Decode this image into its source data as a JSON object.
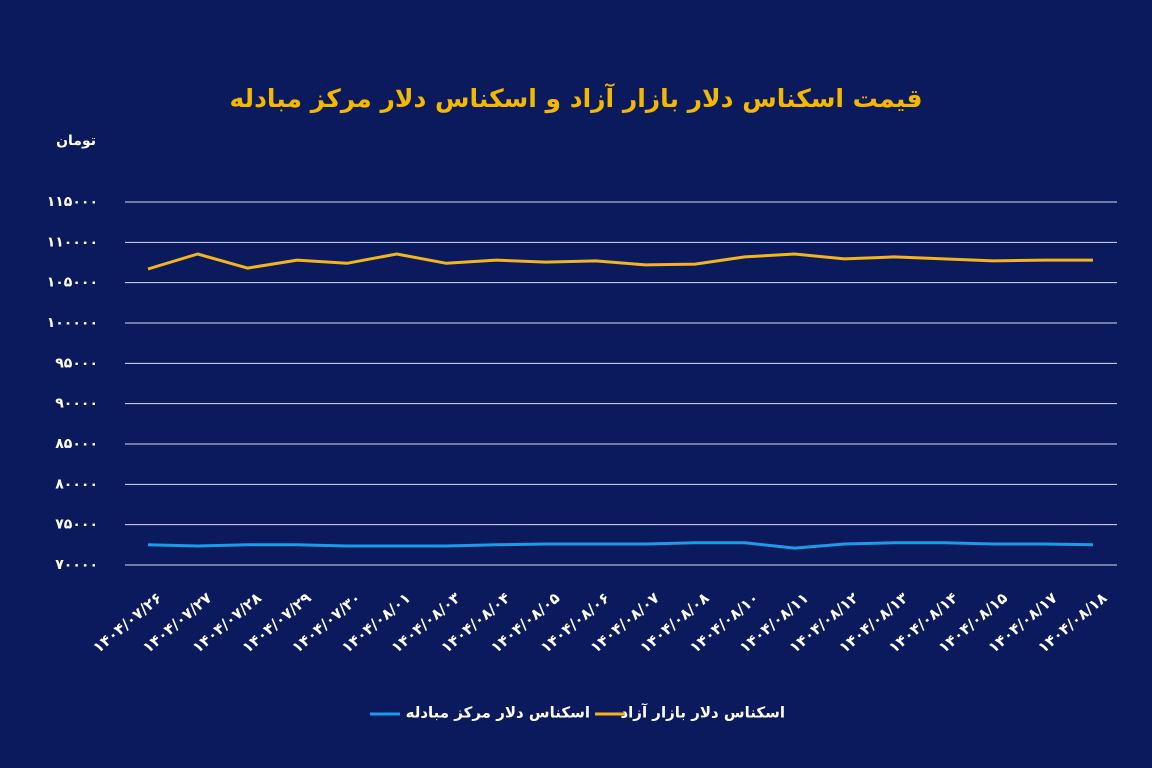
{
  "chart_data": {
    "type": "line",
    "title": "قیمت اسکناس دلار بازار آزاد و اسکناس دلار مرکز مبادله",
    "y_label": "تومان",
    "categories": [
      "۱۴۰۴/۰۷/۲۶",
      "۱۴۰۴/۰۷/۲۷",
      "۱۴۰۴/۰۷/۲۸",
      "۱۴۰۴/۰۷/۲۹",
      "۱۴۰۴/۰۷/۳۰",
      "۱۴۰۴/۰۸/۰۱",
      "۱۴۰۴/۰۸/۰۳",
      "۱۴۰۴/۰۸/۰۴",
      "۱۴۰۴/۰۸/۰۵",
      "۱۴۰۴/۰۸/۰۶",
      "۱۴۰۴/۰۸/۰۷",
      "۱۴۰۴/۰۸/۰۸",
      "۱۴۰۴/۰۸/۱۰",
      "۱۴۰۴/۰۸/۱۱",
      "۱۴۰۴/۰۸/۱۲",
      "۱۴۰۴/۰۸/۱۳",
      "۱۴۰۴/۰۸/۱۴",
      "۱۴۰۴/۰۸/۱۵",
      "۱۴۰۴/۰۸/۱۷",
      "۱۴۰۴/۰۸/۱۸"
    ],
    "series": [
      {
        "name": "اسکناس دلار بازار آزاد",
        "color": "#f2b51d",
        "values": [
          106700,
          108550,
          106800,
          107800,
          107400,
          108550,
          107400,
          107800,
          107550,
          107700,
          107200,
          107300,
          108200,
          108550,
          107950,
          108200,
          107950,
          107700,
          107800,
          107800
        ]
      },
      {
        "name": "اسکناس دلار مرکز مبادله",
        "color": "#1e9be8",
        "values": [
          72500,
          72350,
          72500,
          72500,
          72350,
          72350,
          72350,
          72500,
          72600,
          72600,
          72600,
          72750,
          72750,
          72100,
          72600,
          72750,
          72750,
          72600,
          72600,
          72500
        ]
      }
    ],
    "ylim": [
      70000,
      115000
    ],
    "yticks": [
      {
        "value": 70000,
        "label": "۷۰۰۰۰"
      },
      {
        "value": 75000,
        "label": "۷۵۰۰۰"
      },
      {
        "value": 80000,
        "label": "۸۰۰۰۰"
      },
      {
        "value": 85000,
        "label": "۸۵۰۰۰"
      },
      {
        "value": 90000,
        "label": "۹۰۰۰۰"
      },
      {
        "value": 95000,
        "label": "۹۵۰۰۰"
      },
      {
        "value": 100000,
        "label": "۱۰۰۰۰۰"
      },
      {
        "value": 105000,
        "label": "۱۰۵۰۰۰"
      },
      {
        "value": 110000,
        "label": "۱۱۰۰۰۰"
      },
      {
        "value": 115000,
        "label": "۱۱۵۰۰۰"
      }
    ],
    "grid": true
  }
}
